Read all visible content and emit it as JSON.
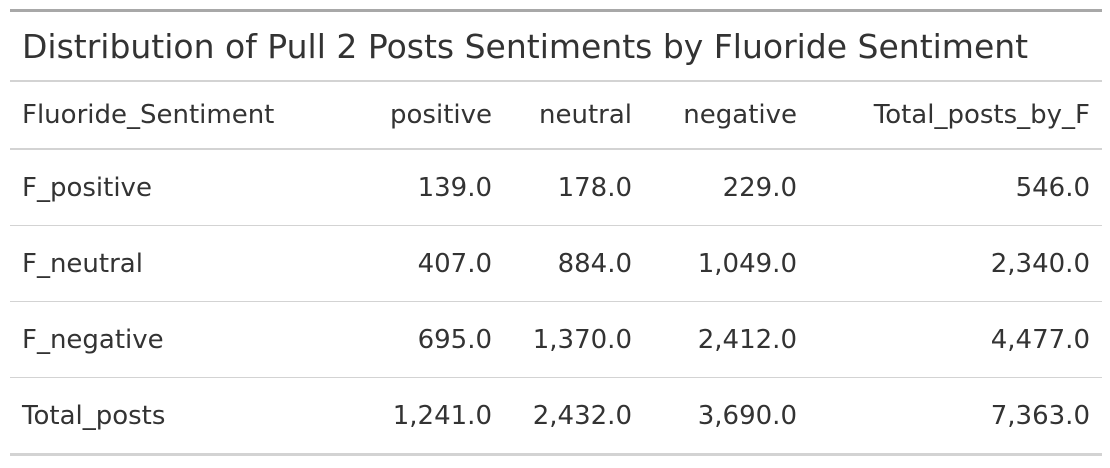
{
  "table": {
    "title": "Distribution of Pull 2 Posts Sentiments by Fluoride Sentiment",
    "columns": [
      "Fluoride_Sentiment",
      "positive",
      "neutral",
      "negative",
      "Total_posts_by_F"
    ],
    "rows": [
      [
        "F_positive",
        "139.0",
        "178.0",
        "229.0",
        "546.0"
      ],
      [
        "F_neutral",
        "407.0",
        "884.0",
        "1,049.0",
        "2,340.0"
      ],
      [
        "F_negative",
        "695.0",
        "1,370.0",
        "2,412.0",
        "4,477.0"
      ],
      [
        "Total_posts",
        "1,241.0",
        "2,432.0",
        "3,690.0",
        "7,363.0"
      ]
    ]
  }
}
